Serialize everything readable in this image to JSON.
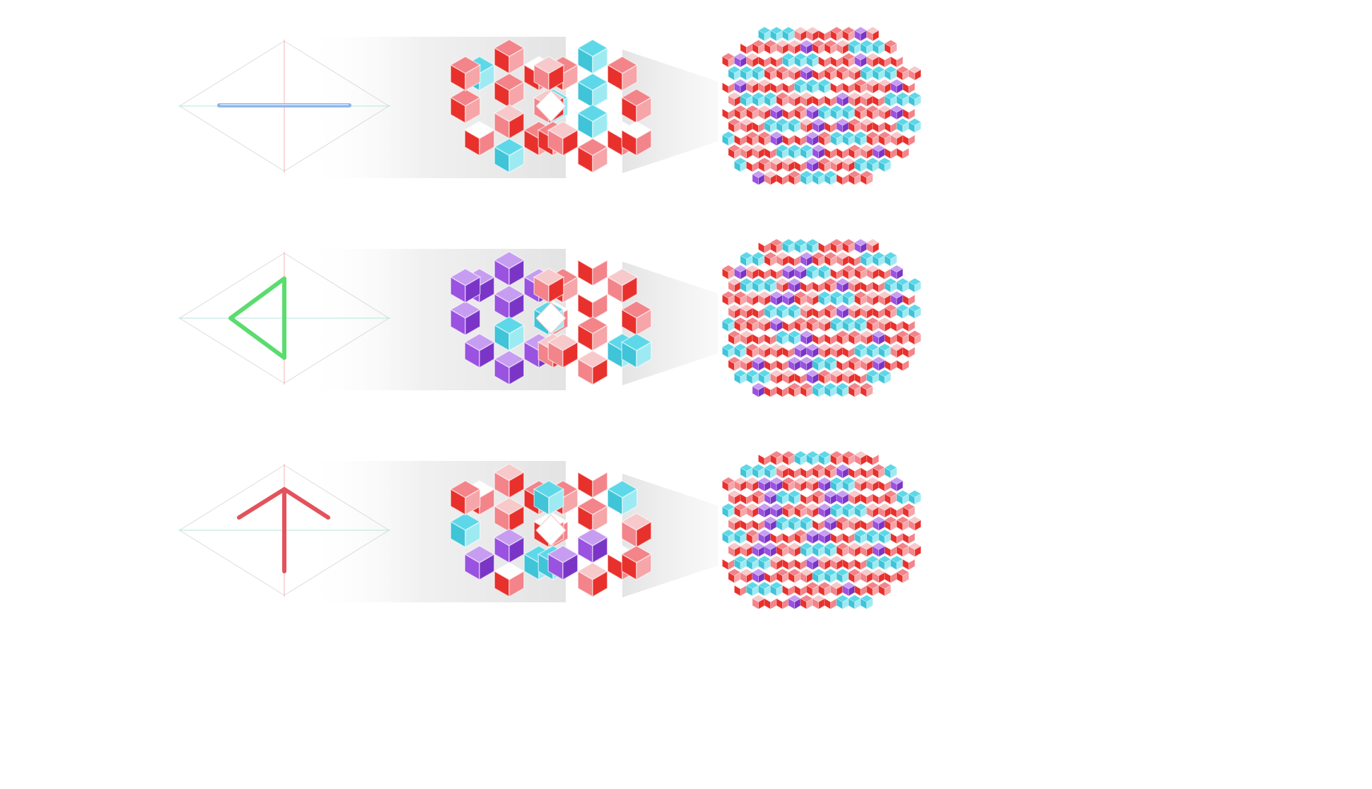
{
  "colors": {
    "red": "#e8312c",
    "pink": "#f2848a",
    "cyan": "#5ed8e8",
    "purple": "#9a52e0",
    "white": "#ffffff",
    "guide": "#dcdcdc",
    "axis_red": "#f3b3b3",
    "axis_teal": "#b5e6df",
    "shadow": "#e6e6e6"
  },
  "rows": [
    {
      "motif": "line",
      "motif_color": "#8fb7ea",
      "purple_cluster": "none",
      "big_purple_cols": [
        7
      ]
    },
    {
      "motif": "triangle",
      "motif_color": "#5bdc6e",
      "purple_cluster": "left",
      "big_purple_cols": [
        5,
        6
      ]
    },
    {
      "motif": "arrow",
      "motif_color": "#e2535c",
      "purple_cluster": "bottom",
      "big_purple_cols": [
        3,
        8
      ]
    }
  ]
}
